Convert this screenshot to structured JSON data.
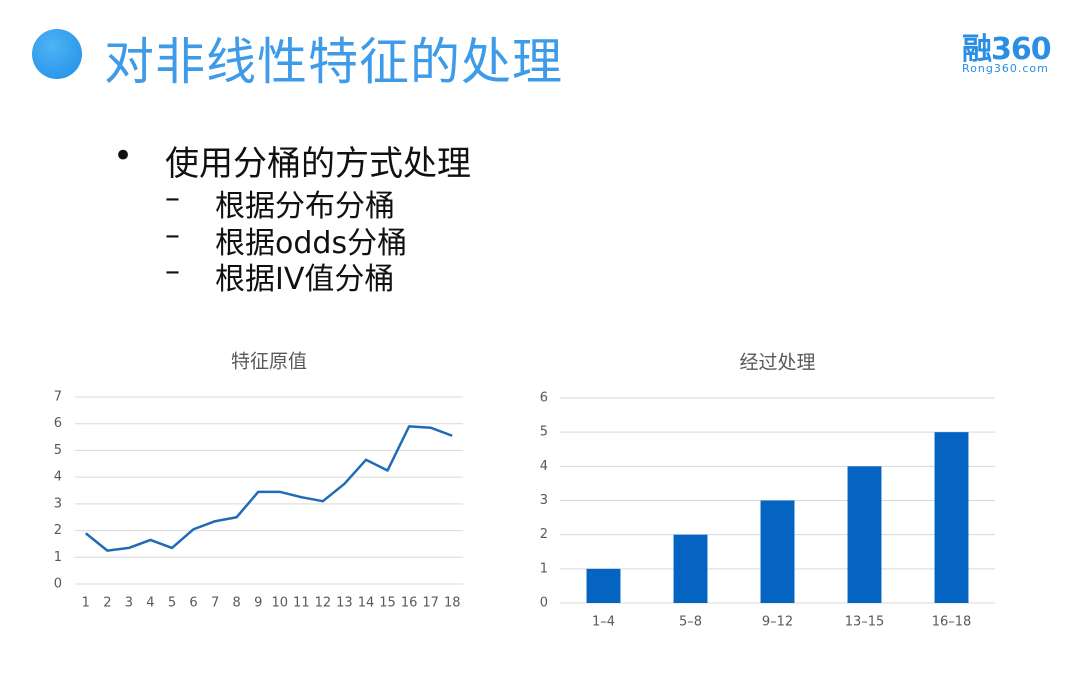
{
  "header": {
    "title": "对非线性特征的处理",
    "logo": "融360",
    "logo_sub": "Rong360.com"
  },
  "bullets": [
    {
      "text": "使用分桶的方式处理",
      "items": [
        "根据分布分桶",
        "根据odds分桶",
        "根据IV值分桶"
      ]
    }
  ],
  "chart_data": [
    {
      "type": "line",
      "title": "特征原值",
      "categories": [
        "1",
        "2",
        "3",
        "4",
        "5",
        "6",
        "7",
        "8",
        "9",
        "10",
        "11",
        "12",
        "13",
        "14",
        "15",
        "16",
        "17",
        "18"
      ],
      "values": [
        1.9,
        1.25,
        1.35,
        1.65,
        1.35,
        2.05,
        2.35,
        2.5,
        3.45,
        3.45,
        3.25,
        3.1,
        3.75,
        4.65,
        4.25,
        5.9,
        5.85,
        5.55
      ],
      "color": "#1f6bb5",
      "ylim": [
        0,
        7
      ],
      "yticks": [
        0,
        1,
        2,
        3,
        4,
        5,
        6,
        7
      ],
      "grid": true
    },
    {
      "type": "bar",
      "title": "经过处理",
      "categories": [
        "1–4",
        "5–8",
        "9–12",
        "13–15",
        "16–18"
      ],
      "values": [
        1,
        2,
        3,
        4,
        5
      ],
      "color": "#0563c1",
      "ylim": [
        0,
        6
      ],
      "yticks": [
        0,
        1,
        2,
        3,
        4,
        5,
        6
      ],
      "grid": true
    }
  ]
}
